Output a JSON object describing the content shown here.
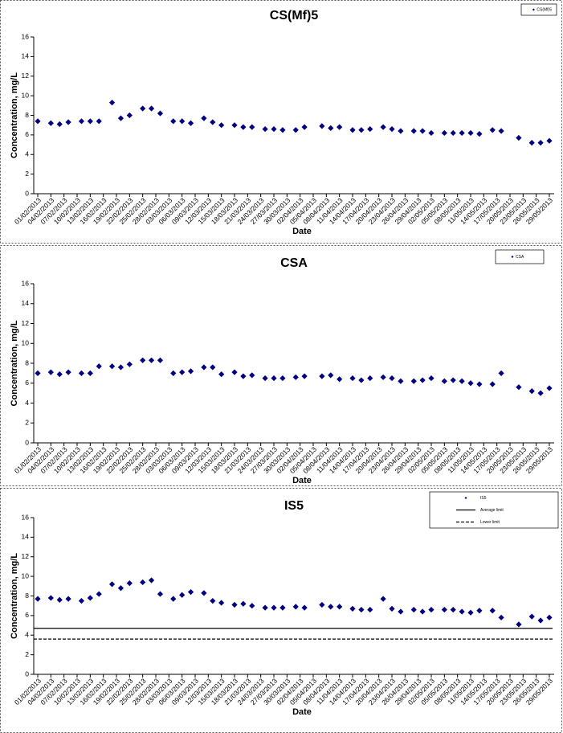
{
  "chart_data": [
    {
      "type": "scatter",
      "title": "CS(Mf)5",
      "x_label": "Date",
      "y_label": "Concentration, mg/L",
      "x": [
        "01/02/2013",
        "04/02/2013",
        "06/02/2013",
        "08/02/2013",
        "11/02/2013",
        "13/02/2013",
        "15/02/2013",
        "18/02/2013",
        "20/02/2013",
        "22/02/2013",
        "25/02/2013",
        "27/02/2013",
        "01/03/2013",
        "04/03/2013",
        "06/03/2013",
        "08/03/2013",
        "11/03/2013",
        "13/03/2013",
        "15/03/2013",
        "18/03/2013",
        "20/03/2013",
        "22/03/2013",
        "25/03/2013",
        "27/03/2013",
        "29/03/2013",
        "01/04/2013",
        "03/04/2013",
        "07/04/2013",
        "09/04/2013",
        "11/04/2013",
        "14/04/2013",
        "16/04/2013",
        "18/04/2013",
        "21/04/2013",
        "23/04/2013",
        "25/04/2013",
        "28/04/2013",
        "30/04/2013",
        "02/05/2013",
        "05/05/2013",
        "07/05/2013",
        "09/05/2013",
        "11/05/2013",
        "13/05/2013",
        "16/05/2013",
        "18/05/2013",
        "22/05/2013",
        "25/05/2013",
        "27/05/2013",
        "29/05/2013"
      ],
      "xlim": [
        "01/02/2013",
        "29/05/2013"
      ],
      "xticks": [
        "01/02/2013",
        "04/02/2013",
        "07/02/2013",
        "10/02/2013",
        "13/02/2013",
        "16/02/2013",
        "19/02/2013",
        "22/02/2013",
        "25/02/2013",
        "28/02/2013",
        "03/03/2013",
        "06/03/2013",
        "09/03/2013",
        "12/03/2013",
        "15/03/2013",
        "18/03/2013",
        "21/03/2013",
        "24/03/2013",
        "27/03/2013",
        "30/03/2013",
        "02/04/2013",
        "05/04/2013",
        "08/04/2013",
        "11/04/2013",
        "14/04/2013",
        "17/04/2013",
        "20/04/2013",
        "23/04/2013",
        "26/04/2013",
        "29/04/2013",
        "02/05/2013",
        "05/05/2013",
        "08/05/2013",
        "11/05/2013",
        "14/05/2013",
        "17/05/2013",
        "20/05/2013",
        "23/05/2013",
        "26/05/2013",
        "29/05/2013"
      ],
      "ylim": [
        0,
        16
      ],
      "yticks": [
        0,
        2,
        4,
        6,
        8,
        10,
        12,
        14,
        16
      ],
      "series": [
        {
          "name": "CS(Mf)5",
          "color": "#000080",
          "marker": "diamond",
          "values": [
            7.4,
            7.2,
            7.1,
            7.3,
            7.4,
            7.4,
            7.4,
            9.3,
            7.7,
            8.0,
            8.7,
            8.7,
            8.2,
            7.4,
            7.4,
            7.2,
            7.7,
            7.3,
            7.0,
            7.0,
            6.8,
            6.8,
            6.6,
            6.6,
            6.5,
            6.5,
            6.8,
            6.9,
            6.7,
            6.8,
            6.5,
            6.5,
            6.6,
            6.8,
            6.6,
            6.4,
            6.4,
            6.4,
            6.2,
            6.2,
            6.2,
            6.2,
            6.2,
            6.1,
            6.5,
            6.4,
            5.7,
            5.2,
            5.2,
            5.4
          ]
        }
      ]
    },
    {
      "type": "scatter",
      "title": "CSA",
      "x_label": "Date",
      "y_label": "Concentration, mg/L",
      "x": [
        "01/02/2013",
        "04/02/2013",
        "06/02/2013",
        "08/02/2013",
        "11/02/2013",
        "13/02/2013",
        "15/02/2013",
        "18/02/2013",
        "20/02/2013",
        "22/02/2013",
        "25/02/2013",
        "27/02/2013",
        "01/03/2013",
        "04/03/2013",
        "06/03/2013",
        "08/03/2013",
        "11/03/2013",
        "13/03/2013",
        "15/03/2013",
        "18/03/2013",
        "20/03/2013",
        "22/03/2013",
        "25/03/2013",
        "27/03/2013",
        "29/03/2013",
        "01/04/2013",
        "03/04/2013",
        "07/04/2013",
        "09/04/2013",
        "11/04/2013",
        "14/04/2013",
        "16/04/2013",
        "18/04/2013",
        "21/04/2013",
        "23/04/2013",
        "25/04/2013",
        "28/04/2013",
        "30/04/2013",
        "02/05/2013",
        "05/05/2013",
        "07/05/2013",
        "09/05/2013",
        "11/05/2013",
        "13/05/2013",
        "16/05/2013",
        "18/05/2013",
        "22/05/2013",
        "25/05/2013",
        "27/05/2013",
        "29/05/2013"
      ],
      "xlim": [
        "01/02/2013",
        "29/05/2013"
      ],
      "xticks": [
        "01/02/2013",
        "04/02/2013",
        "07/02/2013",
        "10/02/2013",
        "13/02/2013",
        "16/02/2013",
        "19/02/2013",
        "22/02/2013",
        "25/02/2013",
        "28/02/2013",
        "03/03/2013",
        "06/03/2013",
        "09/03/2013",
        "12/03/2013",
        "15/03/2013",
        "18/03/2013",
        "21/03/2013",
        "24/03/2013",
        "27/03/2013",
        "30/03/2013",
        "02/04/2013",
        "05/04/2013",
        "08/04/2013",
        "11/04/2013",
        "14/04/2013",
        "17/04/2013",
        "20/04/2013",
        "23/04/2013",
        "26/04/2013",
        "29/04/2013",
        "02/05/2013",
        "05/05/2013",
        "08/05/2013",
        "11/05/2013",
        "14/05/2013",
        "17/05/2013",
        "20/05/2013",
        "23/05/2013",
        "26/05/2013",
        "29/05/2013"
      ],
      "ylim": [
        0,
        16
      ],
      "yticks": [
        0,
        2,
        4,
        6,
        8,
        10,
        12,
        14,
        16
      ],
      "series": [
        {
          "name": "CSA",
          "color": "#000080",
          "marker": "diamond",
          "values": [
            7.0,
            7.1,
            6.9,
            7.1,
            7.0,
            7.0,
            7.7,
            7.7,
            7.6,
            7.9,
            8.3,
            8.3,
            8.3,
            7.0,
            7.1,
            7.2,
            7.6,
            7.6,
            6.9,
            7.1,
            6.7,
            6.8,
            6.5,
            6.5,
            6.5,
            6.6,
            6.7,
            6.7,
            6.8,
            6.4,
            6.5,
            6.3,
            6.5,
            6.6,
            6.5,
            6.2,
            6.2,
            6.3,
            6.5,
            6.2,
            6.3,
            6.2,
            6.0,
            5.9,
            5.9,
            7.0,
            5.6,
            5.2,
            5.0,
            5.5
          ]
        }
      ]
    },
    {
      "type": "scatter",
      "title": "IS5",
      "x_label": "Date",
      "y_label": "Concentration, mg/L",
      "x": [
        "01/02/2013",
        "04/02/2013",
        "06/02/2013",
        "08/02/2013",
        "11/02/2013",
        "13/02/2013",
        "15/02/2013",
        "18/02/2013",
        "20/02/2013",
        "22/02/2013",
        "25/02/2013",
        "27/02/2013",
        "01/03/2013",
        "04/03/2013",
        "06/03/2013",
        "08/03/2013",
        "11/03/2013",
        "13/03/2013",
        "15/03/2013",
        "18/03/2013",
        "20/03/2013",
        "22/03/2013",
        "25/03/2013",
        "27/03/2013",
        "29/03/2013",
        "01/04/2013",
        "03/04/2013",
        "07/04/2013",
        "09/04/2013",
        "11/04/2013",
        "14/04/2013",
        "16/04/2013",
        "18/04/2013",
        "21/04/2013",
        "23/04/2013",
        "25/04/2013",
        "28/04/2013",
        "30/04/2013",
        "02/05/2013",
        "05/05/2013",
        "07/05/2013",
        "09/05/2013",
        "11/05/2013",
        "13/05/2013",
        "16/05/2013",
        "18/05/2013",
        "22/05/2013",
        "25/05/2013",
        "27/05/2013",
        "29/05/2013"
      ],
      "xlim": [
        "01/02/2013",
        "29/05/2013"
      ],
      "xticks": [
        "01/02/2013",
        "04/02/2013",
        "07/02/2013",
        "10/02/2013",
        "13/02/2013",
        "16/02/2013",
        "19/02/2013",
        "22/02/2013",
        "25/02/2013",
        "28/02/2013",
        "03/03/2013",
        "06/03/2013",
        "09/03/2013",
        "12/03/2013",
        "15/03/2013",
        "18/03/2013",
        "21/03/2013",
        "24/03/2013",
        "27/03/2013",
        "30/03/2013",
        "02/04/2013",
        "05/04/2013",
        "08/04/2013",
        "11/04/2013",
        "14/04/2013",
        "17/04/2013",
        "20/04/2013",
        "23/04/2013",
        "26/04/2013",
        "29/04/2013",
        "02/05/2013",
        "05/05/2013",
        "08/05/2013",
        "11/05/2013",
        "14/05/2013",
        "17/05/2013",
        "20/05/2013",
        "23/05/2013",
        "26/05/2013",
        "29/05/2013"
      ],
      "ylim": [
        0,
        16
      ],
      "yticks": [
        0,
        2,
        4,
        6,
        8,
        10,
        12,
        14,
        16
      ],
      "series": [
        {
          "name": "IS5",
          "color": "#000080",
          "marker": "diamond",
          "values": [
            7.7,
            7.8,
            7.6,
            7.7,
            7.5,
            7.8,
            8.2,
            9.2,
            8.8,
            9.3,
            9.4,
            9.6,
            8.2,
            7.7,
            8.1,
            8.4,
            8.3,
            7.5,
            7.3,
            7.1,
            7.2,
            7.0,
            6.8,
            6.8,
            6.8,
            6.9,
            6.8,
            7.1,
            6.9,
            6.9,
            6.7,
            6.6,
            6.6,
            7.7,
            6.7,
            6.4,
            6.6,
            6.4,
            6.6,
            6.6,
            6.6,
            6.4,
            6.3,
            6.5,
            6.5,
            5.8,
            5.1,
            5.9,
            5.5,
            5.8
          ]
        },
        {
          "name": "Average limit",
          "color": "#000000",
          "marker": "hline",
          "dash": false,
          "y": 4.7
        },
        {
          "name": "Lower limit",
          "color": "#000000",
          "marker": "hline",
          "dash": true,
          "y": 3.6
        }
      ]
    }
  ]
}
